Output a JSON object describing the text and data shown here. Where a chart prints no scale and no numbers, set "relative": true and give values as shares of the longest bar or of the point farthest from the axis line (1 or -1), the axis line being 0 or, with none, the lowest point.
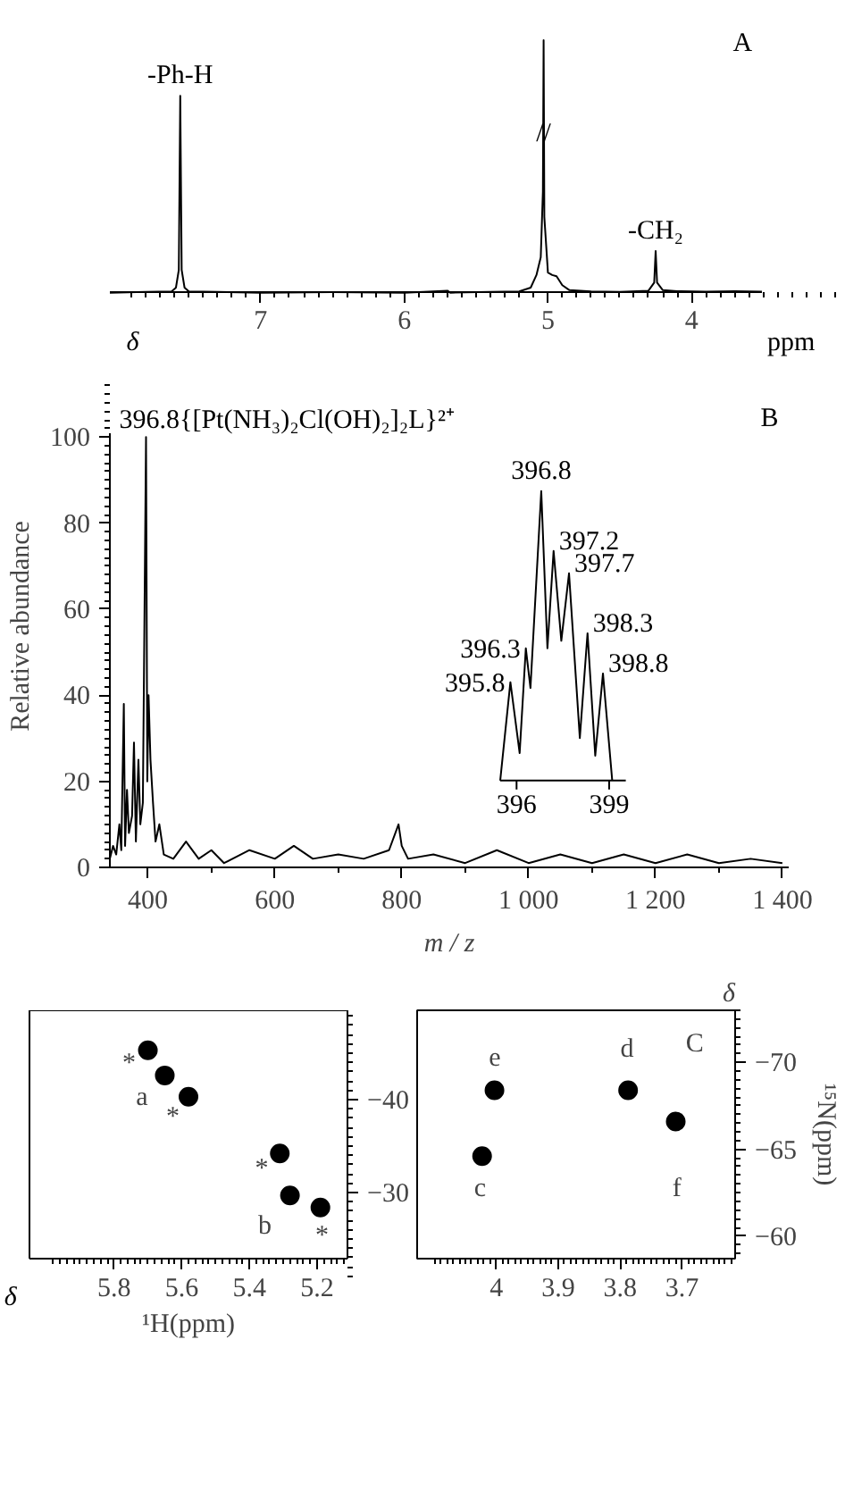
{
  "chart_data": [
    {
      "type": "line",
      "relative": true,
      "xlabel": "ppm",
      "annotations": [
        "A",
        "δ",
        {
          "text": "-Ph-H",
          "x": 7.56,
          "y": 0.78
        },
        {
          "text": "-CH₂",
          "x": 4.25,
          "y": 0.165
        },
        {
          "text": "//",
          "x": 5.03,
          "y": 0.55
        }
      ],
      "x": [
        8.05,
        7.8,
        7.62,
        7.59,
        7.57,
        7.56,
        7.55,
        7.53,
        7.5,
        7.3,
        7.0,
        6.5,
        6.0,
        5.7,
        5.68,
        5.4,
        5.2,
        5.12,
        5.08,
        5.05,
        5.035,
        5.03,
        5.025,
        5.0,
        4.97,
        4.94,
        4.9,
        4.85,
        4.7,
        4.5,
        4.3,
        4.26,
        4.25,
        4.24,
        4.2,
        4.1,
        3.9,
        3.7,
        3.51
      ],
      "values": [
        0.0,
        0.003,
        0.005,
        0.02,
        0.09,
        0.78,
        0.09,
        0.02,
        0.005,
        0.003,
        0.0,
        0.002,
        0.0,
        0.008,
        0.0,
        0.003,
        0.005,
        0.02,
        0.07,
        0.14,
        0.4,
        1.0,
        0.3,
        0.08,
        0.07,
        0.065,
        0.03,
        0.01,
        0.005,
        0.003,
        0.008,
        0.04,
        0.165,
        0.04,
        0.01,
        0.006,
        0.004,
        0.006,
        0.004
      ],
      "color": "#000000",
      "xlim": [
        8.05,
        3.51
      ],
      "xticks": [
        7,
        6,
        5,
        4
      ]
    },
    {
      "type": "line",
      "xlabel": "m / z",
      "ylabel": "Relative abundance",
      "annotations": [
        "B",
        {
          "text": "396.8{[Pt(NH₃)₂Cl(OH)₂]₂L}²⁺",
          "x": 397,
          "y": 100
        }
      ],
      "x": [
        340,
        345,
        350,
        355,
        358,
        362,
        364,
        367,
        370,
        375,
        378,
        381,
        385,
        388,
        392,
        397,
        399,
        401,
        404,
        408,
        412,
        418,
        425,
        440,
        460,
        480,
        500,
        520,
        560,
        600,
        630,
        660,
        700,
        740,
        780,
        795,
        800,
        810,
        850,
        900,
        950,
        1000,
        1050,
        1100,
        1150,
        1200,
        1250,
        1300,
        1350,
        1400
      ],
      "values": [
        2,
        5,
        3,
        10,
        4,
        38,
        5,
        18,
        8,
        12,
        29,
        6,
        25,
        10,
        15,
        100,
        20,
        40,
        25,
        15,
        6,
        10,
        3,
        2,
        6,
        2,
        4,
        1,
        4,
        2,
        5,
        2,
        3,
        2,
        4,
        10,
        5,
        2,
        3,
        1,
        4,
        1,
        3,
        1,
        3,
        1,
        3,
        1,
        2,
        1
      ],
      "color": "#000000",
      "xlim": [
        340,
        1410
      ],
      "ylim": [
        0,
        101
      ],
      "xticks": [
        400,
        600,
        800,
        {
          "value": 1000,
          "label": "1 000"
        },
        {
          "value": 1200,
          "label": "1 200"
        },
        {
          "value": 1400,
          "label": "1 400"
        }
      ],
      "yticks": [
        0,
        20,
        40,
        60,
        80,
        100
      ]
    },
    {
      "type": "line",
      "relative": true,
      "annotations": [
        {
          "text": "395.8",
          "x": 395.8,
          "y": 0.34
        },
        {
          "text": "396.3",
          "x": 396.3,
          "y": 0.457
        },
        {
          "text": "396.8",
          "x": 396.8,
          "y": 1.0
        },
        {
          "text": "397.2",
          "x": 397.2,
          "y": 0.793
        },
        {
          "text": "397.7",
          "x": 397.7,
          "y": 0.716
        },
        {
          "text": "398.3",
          "x": 398.3,
          "y": 0.509
        },
        {
          "text": "398.8",
          "x": 398.8,
          "y": 0.37
        }
      ],
      "x": [
        395.47,
        395.8,
        396.1,
        396.3,
        396.45,
        396.8,
        397.0,
        397.2,
        397.45,
        397.7,
        398.05,
        398.3,
        398.55,
        398.8,
        399.1
      ],
      "values": [
        0.0,
        0.34,
        0.095,
        0.457,
        0.32,
        1.0,
        0.457,
        0.793,
        0.483,
        0.716,
        0.147,
        0.509,
        0.086,
        0.37,
        0.0
      ],
      "color": "#000000",
      "xlim": [
        395.47,
        399.54
      ],
      "xticks": [
        396,
        399
      ]
    },
    {
      "type": "scatter",
      "marker": "circle",
      "xlabel": "¹H(ppm)",
      "annotations": [
        "δ",
        "a",
        "b",
        "*",
        "*",
        "*",
        "*"
      ],
      "x": [
        5.7,
        5.65,
        5.58,
        5.31,
        5.28,
        5.19
      ],
      "values": [
        -45.3,
        -42.6,
        -40.3,
        -34.2,
        -29.7,
        -28.4
      ],
      "color": "#000000",
      "xlim": [
        6.05,
        5.11
      ],
      "ylim": [
        -22.9,
        -49.6
      ],
      "xticks": [
        5.8,
        5.6,
        5.4,
        5.2
      ],
      "yticks": [
        -40,
        -30
      ]
    },
    {
      "type": "scatter",
      "marker": "circle",
      "ylabel": "¹⁵N(ppm)",
      "annotations": [
        "C",
        "δ",
        "e",
        "c",
        "d",
        "f"
      ],
      "x": [
        4.003,
        4.023,
        3.787,
        3.71
      ],
      "values": [
        -68.4,
        -64.6,
        -68.4,
        -66.6
      ],
      "color": "#000000",
      "xlim": [
        4.128,
        3.614
      ],
      "ylim": [
        -58.7,
        -73.0
      ],
      "xticks": [
        4.0,
        3.9,
        3.8,
        3.7
      ],
      "yticks": [
        -70,
        -65,
        -60
      ]
    }
  ]
}
